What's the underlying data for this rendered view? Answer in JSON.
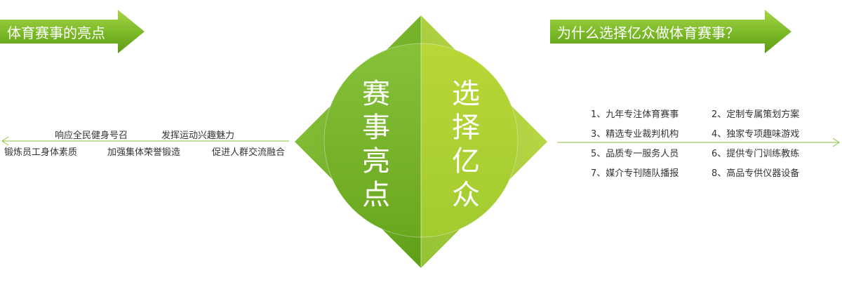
{
  "left_banner": {
    "label": "体育赛事的亮点"
  },
  "right_banner": {
    "label": "为什么选择亿众做体育赛事？"
  },
  "center": {
    "left_title": "赛事亮点",
    "right_title": "选择亿众"
  },
  "highlights": [
    "响应全民健身号召",
    "发挥运动兴趣魅力",
    "锻炼员工身体素质",
    "加强集体荣誉锻造",
    "促进人群交流融合"
  ],
  "reasons": [
    "1、九年专注体育赛事",
    "2、定制专属策划方案",
    "3、精选专业裁判机构",
    "4、独家专项趣味游戏",
    "5、品质专一服务人员",
    "6、提供专门训练教练",
    "7、媒介专刊随队播报",
    "8、高品专供仪器设备"
  ],
  "colors": {
    "green_dark": "#6aaa1e",
    "green_light": "#b3d334",
    "green_mid": "#8fc33a",
    "line": "#8dc63f"
  }
}
